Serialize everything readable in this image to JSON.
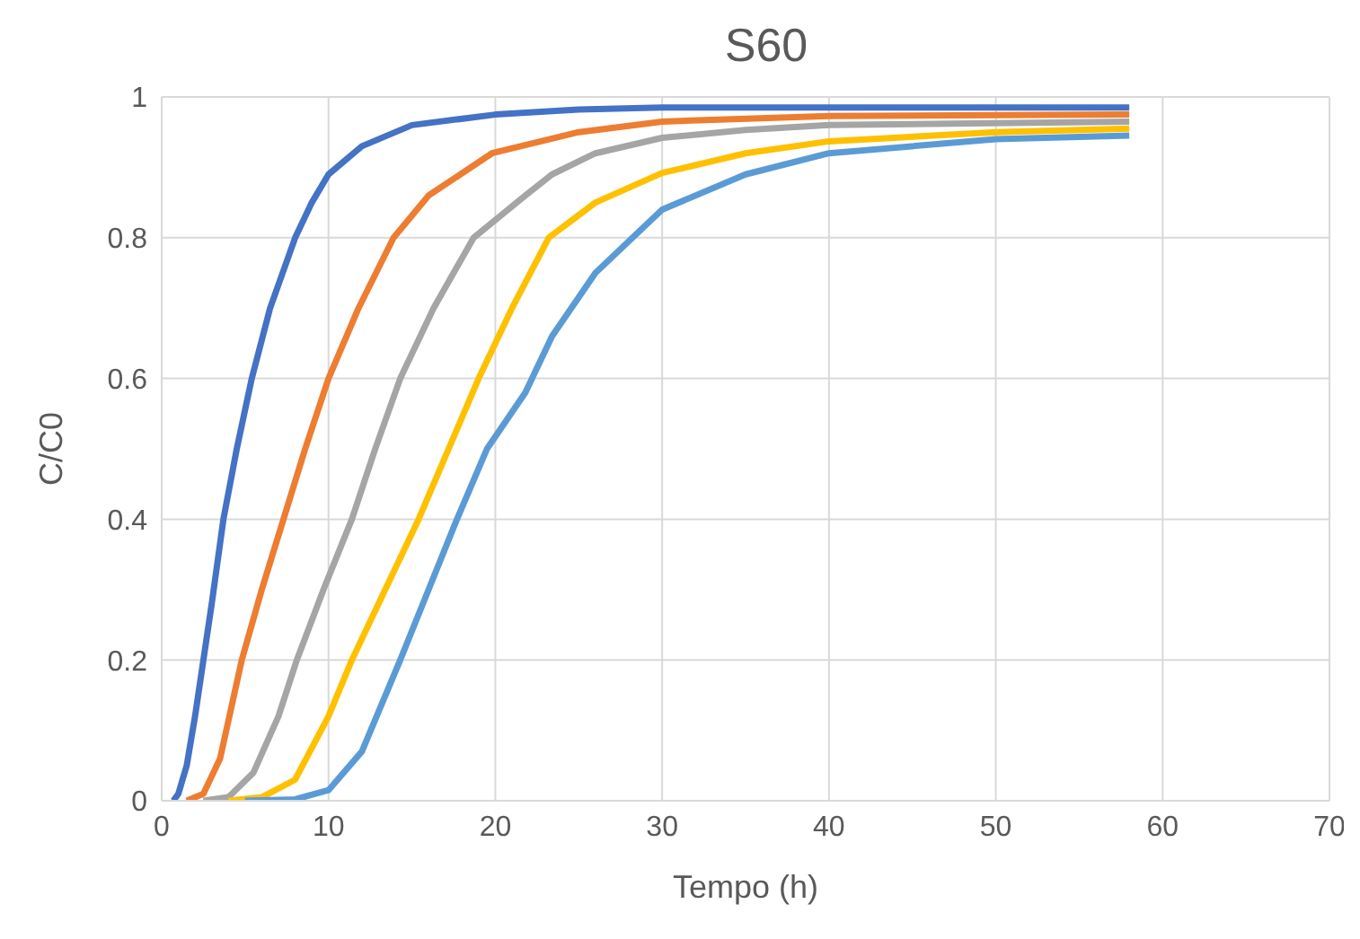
{
  "chart_data": {
    "type": "line",
    "title": "S60",
    "xlabel": "Tempo (h)",
    "ylabel": "C/C0",
    "xlim": [
      0,
      70
    ],
    "xticks": [
      0,
      10,
      20,
      30,
      40,
      50,
      60,
      70
    ],
    "ylim": [
      0,
      1
    ],
    "yticks": [
      0,
      0.2,
      0.4,
      0.6,
      0.8,
      1
    ],
    "grid": true,
    "legend": false,
    "marker": "none",
    "line_style": "solid",
    "series": [
      {
        "color": "#4472c4",
        "x": [
          0.7,
          1,
          1.5,
          2,
          2.5,
          3,
          3.7,
          4.5,
          5.4,
          6.5,
          8,
          9,
          10,
          12,
          15,
          20,
          25,
          30,
          58
        ],
        "values": [
          0,
          0.01,
          0.05,
          0.12,
          0.2,
          0.28,
          0.4,
          0.5,
          0.6,
          0.7,
          0.8,
          0.85,
          0.89,
          0.93,
          0.96,
          0.975,
          0.982,
          0.985,
          0.985
        ]
      },
      {
        "color": "#ed7d31",
        "x": [
          1.5,
          2.5,
          3.5,
          4.8,
          6,
          7.3,
          8.6,
          10,
          11.8,
          13.9,
          16,
          19.8,
          25,
          30,
          40,
          58
        ],
        "values": [
          0,
          0.01,
          0.06,
          0.2,
          0.3,
          0.4,
          0.5,
          0.6,
          0.7,
          0.8,
          0.86,
          0.92,
          0.95,
          0.965,
          0.973,
          0.975
        ]
      },
      {
        "color": "#a5a5a5",
        "x": [
          2.5,
          4,
          5.5,
          7,
          8.1,
          9.7,
          11.4,
          12.8,
          14.3,
          16.3,
          18.7,
          21.8,
          23.4,
          26,
          30,
          35,
          40,
          58
        ],
        "values": [
          0,
          0.005,
          0.04,
          0.12,
          0.2,
          0.3,
          0.4,
          0.5,
          0.6,
          0.7,
          0.8,
          0.86,
          0.89,
          0.92,
          0.942,
          0.953,
          0.96,
          0.965
        ]
      },
      {
        "color": "#ffc000",
        "x": [
          4,
          6,
          8,
          10,
          11.4,
          13.4,
          15.4,
          17.2,
          19,
          21,
          23.2,
          26,
          30,
          35,
          40,
          50,
          58
        ],
        "values": [
          0,
          0.005,
          0.03,
          0.12,
          0.2,
          0.3,
          0.4,
          0.5,
          0.6,
          0.7,
          0.8,
          0.85,
          0.892,
          0.92,
          0.937,
          0.95,
          0.955
        ]
      },
      {
        "color": "#5b9bd5",
        "x": [
          5,
          8,
          10,
          12,
          14.3,
          16,
          17.7,
          19.5,
          21.8,
          23.4,
          26,
          30,
          35,
          40,
          50,
          58
        ],
        "values": [
          0,
          0.002,
          0.015,
          0.07,
          0.2,
          0.3,
          0.4,
          0.5,
          0.58,
          0.66,
          0.75,
          0.84,
          0.89,
          0.92,
          0.94,
          0.945
        ]
      }
    ]
  }
}
